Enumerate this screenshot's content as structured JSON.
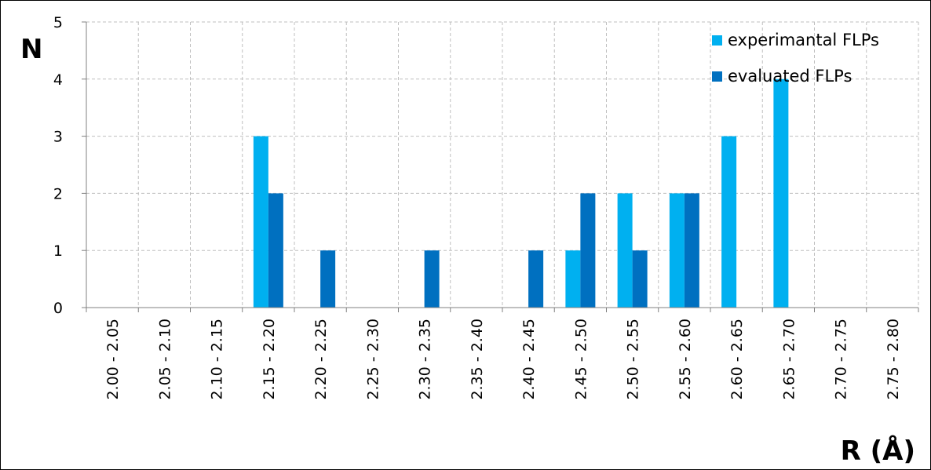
{
  "chart_data": {
    "type": "bar",
    "title": "",
    "xlabel": "R (Å)",
    "ylabel": "N",
    "ylim": [
      0,
      5
    ],
    "yticks": [
      "0",
      "1",
      "2",
      "3",
      "4",
      "5"
    ],
    "grid": true,
    "legend_position": "top-right",
    "categories": [
      "2.00 - 2.05",
      "2.05 - 2.10",
      "2.10 - 2.15",
      "2.15 - 2.20",
      "2.20 - 2.25",
      "2.25 - 2.30",
      "2.30 - 2.35",
      "2.35 - 2.40",
      "2.40 - 2.45",
      "2.45 - 2.50",
      "2.50 - 2.55",
      "2.55 - 2.60",
      "2.60 - 2.65",
      "2.65 - 2.70",
      "2.70 - 2.75",
      "2.75 - 2.80"
    ],
    "series": [
      {
        "name": "experimantal FLPs",
        "color": "#00b0f0",
        "values": [
          0,
          0,
          0,
          3,
          0,
          0,
          0,
          0,
          0,
          1,
          2,
          2,
          3,
          4,
          0,
          0
        ]
      },
      {
        "name": "evaluated FLPs",
        "color": "#0070c0",
        "values": [
          0,
          0,
          0,
          2,
          1,
          0,
          1,
          0,
          1,
          2,
          1,
          2,
          0,
          0,
          0,
          0
        ]
      }
    ]
  }
}
